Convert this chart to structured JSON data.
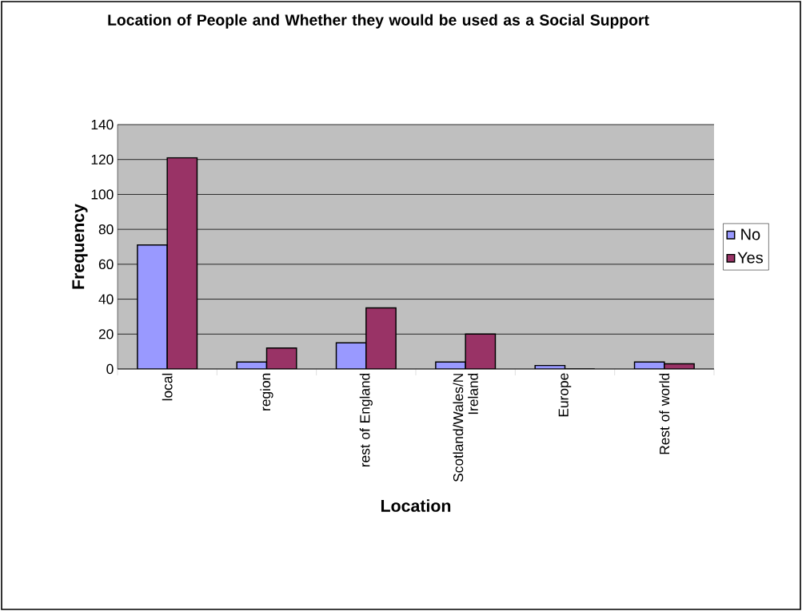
{
  "chart_data": {
    "type": "bar",
    "title": "Location of People and Whether they would be used as a Social Support",
    "xlabel": "Location",
    "ylabel": "Frequency",
    "categories": [
      "local",
      "region",
      "rest of England",
      "Scotland/Wales/N Ireland",
      "Europe",
      "Rest of world"
    ],
    "series": [
      {
        "name": "No",
        "color": "#9999ff",
        "values": [
          71,
          4,
          15,
          4,
          2,
          4
        ]
      },
      {
        "name": "Yes",
        "color": "#993366",
        "values": [
          121,
          12,
          35,
          20,
          0,
          3
        ]
      }
    ],
    "ylim": [
      0,
      140
    ],
    "yticks": [
      0,
      20,
      40,
      60,
      80,
      100,
      120,
      140
    ],
    "grid": "y",
    "legend": "right"
  }
}
